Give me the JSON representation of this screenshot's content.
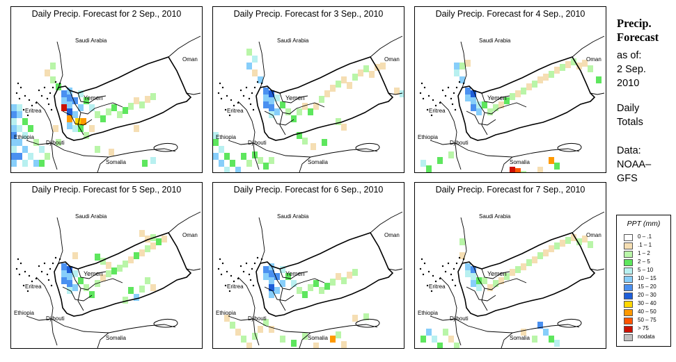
{
  "panels": [
    {
      "title": "Daily Precip. Forecast for  2 Sep., 2010",
      "day": 0
    },
    {
      "title": "Daily Precip. Forecast for  3 Sep., 2010",
      "day": 1
    },
    {
      "title": "Daily Precip. Forecast for  4 Sep., 2010",
      "day": 2
    },
    {
      "title": "Daily Precip. Forecast for  5 Sep., 2010",
      "day": 3
    },
    {
      "title": "Daily Precip. Forecast for  6 Sep., 2010",
      "day": 4
    },
    {
      "title": "Daily Precip. Forecast for  7 Sep., 2010",
      "day": 5
    }
  ],
  "map_labels": {
    "saudi_arabia": "Saudi Arabia",
    "oman": "Oman",
    "yemen": "Yemen",
    "eritrea": "Eritrea",
    "ethiopia": "Ethiopia",
    "djibouti": "Djibouti",
    "somalia": "Somalia"
  },
  "side": {
    "title_line1": "Precip.",
    "title_line2": "Forecast",
    "asof": "as of:",
    "date_line1": "2 Sep.",
    "date_line2": "2010",
    "totals_line1": "Daily",
    "totals_line2": "Totals",
    "data_line1": "Data:",
    "data_line2": "NOAA–",
    "data_line3": "GFS"
  },
  "legend": {
    "title": "PPT (mm)",
    "items": [
      {
        "label": "0 – .1",
        "color": "#ffffff"
      },
      {
        "label": ".1 – 1",
        "color": "#f5deb3"
      },
      {
        "label": "1 – 2",
        "color": "#b9f5a8"
      },
      {
        "label": "2 – 5",
        "color": "#5ee65e"
      },
      {
        "label": "5 – 10",
        "color": "#b8f0f0"
      },
      {
        "label": "10 – 15",
        "color": "#87cefa"
      },
      {
        "label": "15 – 20",
        "color": "#4a90f0"
      },
      {
        "label": "20 – 30",
        "color": "#1e5ed8"
      },
      {
        "label": "30 – 40",
        "color": "#ffd700"
      },
      {
        "label": "40 – 50",
        "color": "#ff9900"
      },
      {
        "label": "50 – 75",
        "color": "#ff5500"
      },
      {
        "label": "> 75",
        "color": "#cc1100"
      },
      {
        "label": "nodata",
        "color": "#c0c0c0"
      }
    ]
  }
}
